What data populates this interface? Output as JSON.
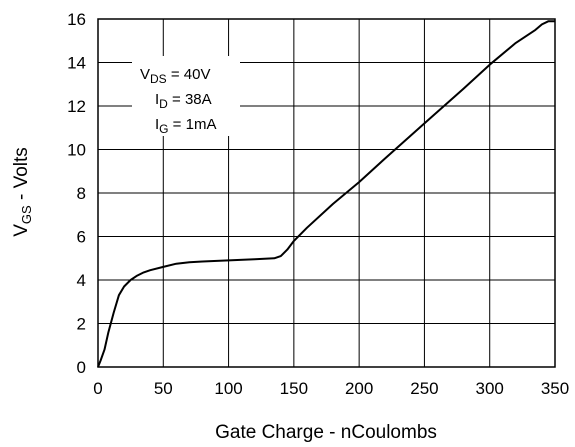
{
  "chart_data": {
    "type": "line",
    "xlabel": "Gate Charge - nCoulombs",
    "ylabel": {
      "main": "V",
      "sub": "GS",
      "rest": " - Volts"
    },
    "xlim": [
      0,
      350
    ],
    "ylim": [
      0,
      16
    ],
    "x_ticks": [
      "0",
      "50",
      "100",
      "150",
      "200",
      "250",
      "300",
      "350"
    ],
    "y_ticks": [
      "0",
      "2",
      "4",
      "6",
      "8",
      "10",
      "12",
      "14",
      "16"
    ],
    "grid": true,
    "line_color": "#000000",
    "conditions": [
      {
        "main": "V",
        "sub": "DS",
        "rest": " = 40V"
      },
      {
        "main": "I",
        "sub": "D",
        "rest": " = 38A"
      },
      {
        "main": "I",
        "sub": "G",
        "rest": " = 1mA"
      }
    ],
    "series": [
      {
        "x": [
          0,
          2,
          5,
          8,
          12,
          16,
          20,
          25,
          30,
          35,
          40,
          50,
          60,
          70,
          80,
          100,
          120,
          135,
          140,
          145,
          150,
          160,
          180,
          200,
          220,
          250,
          280,
          300,
          320,
          335,
          340,
          345,
          350
        ],
        "y": [
          0,
          0.3,
          0.8,
          1.6,
          2.5,
          3.3,
          3.7,
          4.0,
          4.2,
          4.35,
          4.45,
          4.6,
          4.75,
          4.82,
          4.85,
          4.9,
          4.95,
          5.0,
          5.1,
          5.4,
          5.8,
          6.4,
          7.5,
          8.5,
          9.6,
          11.2,
          12.8,
          13.9,
          14.9,
          15.5,
          15.75,
          15.9,
          15.9
        ]
      }
    ]
  }
}
